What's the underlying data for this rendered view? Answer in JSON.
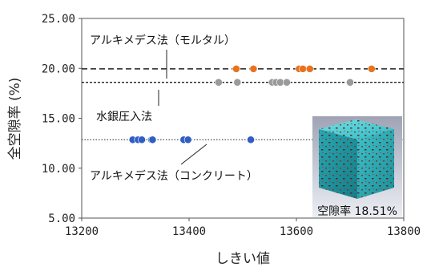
{
  "chart_data": {
    "type": "scatter",
    "xlabel": "しきい値",
    "ylabel": "全空隙率 (%)",
    "xlim": [
      13200,
      13800
    ],
    "ylim": [
      5.0,
      25.0
    ],
    "xticks": [
      "13200",
      "13400",
      "13600",
      "13800"
    ],
    "yticks": [
      "5.00",
      "10.00",
      "15.00",
      "20.00",
      "25.00"
    ],
    "grid": false,
    "series": [
      {
        "color": "#e8731f",
        "x": [
          13488,
          13520,
          13605,
          13612,
          13625,
          13740
        ],
        "y": [
          19.95,
          19.95,
          19.95,
          19.95,
          19.95,
          19.95
        ]
      },
      {
        "color": "#9a9a9a",
        "x": [
          13455,
          13490,
          13555,
          13562,
          13570,
          13582,
          13700
        ],
        "y": [
          18.6,
          18.6,
          18.6,
          18.6,
          18.6,
          18.6,
          18.6
        ]
      },
      {
        "color": "#2f5fc4",
        "x": [
          13295,
          13305,
          13312,
          13330,
          13332,
          13390,
          13398,
          13515
        ],
        "y": [
          12.85,
          12.85,
          12.85,
          12.85,
          12.85,
          12.85,
          12.85,
          12.85
        ]
      }
    ],
    "reference_lines": [
      {
        "y": 19.95,
        "style": "dashed",
        "label": "アルキメデス法（モルタル）"
      },
      {
        "y": 18.6,
        "style": "dotted-dense",
        "label": "水銀圧入法"
      },
      {
        "y": 12.85,
        "style": "dotted",
        "label": "アルキメデス法（コンクリート）"
      }
    ],
    "inset": {
      "caption": "空隙率 18.51%",
      "image": "cube-porosity-render"
    }
  }
}
